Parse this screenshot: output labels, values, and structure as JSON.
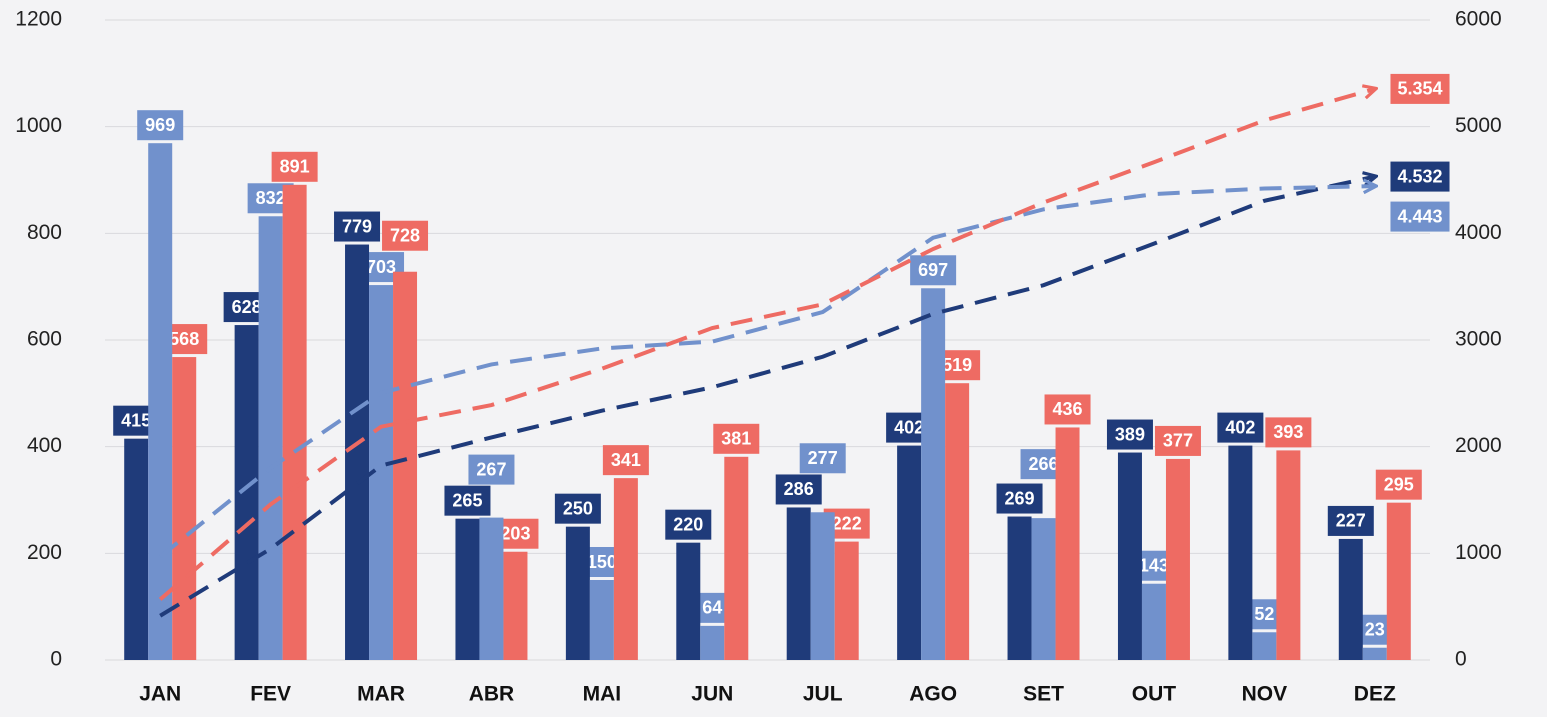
{
  "chart_data": {
    "type": "bar",
    "categories": [
      "JAN",
      "FEV",
      "MAR",
      "ABR",
      "MAI",
      "JUN",
      "JUL",
      "AGO",
      "SET",
      "OUT",
      "NOV",
      "DEZ"
    ],
    "series": [
      {
        "color": "#1f3b7a",
        "values": [
          415,
          628,
          779,
          265,
          250,
          220,
          286,
          402,
          269,
          389,
          402,
          227
        ]
      },
      {
        "color": "#7191cc",
        "values": [
          969,
          832,
          703,
          267,
          150,
          64,
          277,
          697,
          266,
          143,
          52,
          23
        ]
      },
      {
        "color": "#ee6b63",
        "values": [
          568,
          891,
          728,
          203,
          341,
          381,
          222,
          519,
          436,
          377,
          393,
          295
        ]
      },
      {
        "type": "line",
        "axis": "y2",
        "dashed": true,
        "color": "#1f3b7a",
        "values": [
          415,
          1043,
          1822,
          2087,
          2337,
          2557,
          2843,
          3245,
          3514,
          3903,
          4305,
          4532
        ],
        "value_labels": [
          null,
          null,
          null,
          null,
          null,
          null,
          null,
          null,
          null,
          null,
          null,
          "4.532"
        ]
      },
      {
        "type": "line",
        "axis": "y2",
        "dashed": true,
        "color": "#7191cc",
        "values": [
          969,
          1801,
          2504,
          2771,
          2921,
          2985,
          3262,
          3959,
          4225,
          4368,
          4420,
          4443
        ],
        "value_labels": [
          null,
          null,
          null,
          null,
          null,
          null,
          null,
          null,
          null,
          null,
          null,
          "4.443"
        ]
      },
      {
        "type": "line",
        "axis": "y2",
        "dashed": true,
        "color": "#ee6b63",
        "values": [
          568,
          1459,
          2187,
          2390,
          2731,
          3112,
          3334,
          3853,
          4289,
          4666,
          5059,
          5354
        ],
        "value_labels": [
          null,
          null,
          null,
          null,
          null,
          null,
          null,
          null,
          null,
          null,
          null,
          "5.354"
        ]
      }
    ],
    "ylim": [
      0,
      1200
    ],
    "yticks": [
      0,
      200,
      400,
      600,
      800,
      1000,
      1200
    ],
    "y2lim": [
      0,
      6000
    ],
    "y2ticks": [
      0,
      1000,
      2000,
      3000,
      4000,
      5000,
      6000
    ],
    "grid": true
  }
}
